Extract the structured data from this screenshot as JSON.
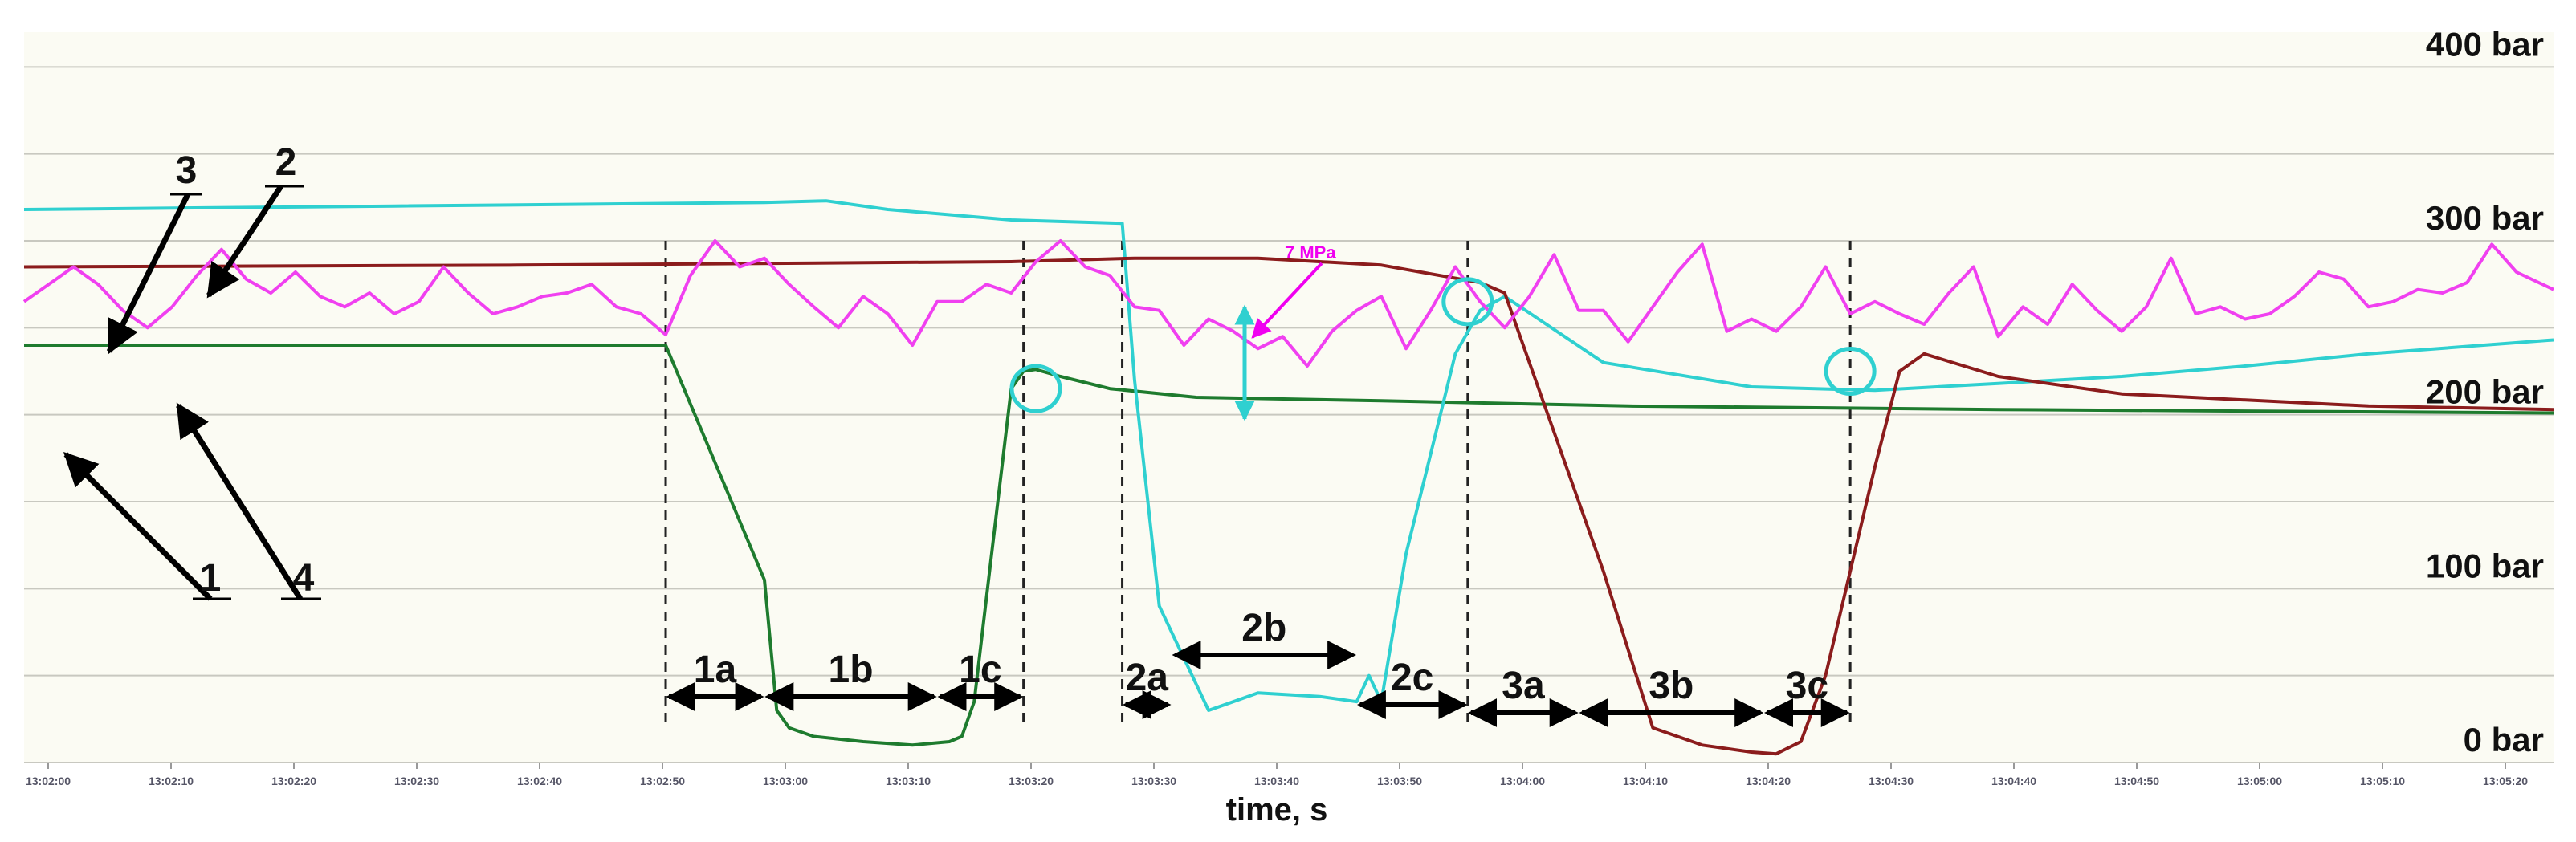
{
  "colors": {
    "background": "#fbfbf3",
    "grid": "#c8c8c0",
    "series_1": "#1e7b2e",
    "series_2": "#2fd0d0",
    "series_3": "#8b1c1c",
    "series_4": "#f040f0",
    "annotation": "#f000f0",
    "marker_circle": "#2fd0d0"
  },
  "chart_data": {
    "type": "line",
    "xlabel": "time, s",
    "x_ticks": [
      "13:02:00",
      "13:02:10",
      "13:02:20",
      "13:02:30",
      "13:02:40",
      "13:02:50",
      "13:03:00",
      "13:03:10",
      "13:03:20",
      "13:03:30",
      "13:03:40",
      "13:03:50",
      "13:04:00",
      "13:04:10",
      "13:04:20",
      "13:04:30",
      "13:04:40",
      "13:04:50",
      "13:05:00",
      "13:05:10",
      "13:05:20"
    ],
    "xlim": [
      0,
      205
    ],
    "ylim": [
      0,
      420
    ],
    "y_ticks": [
      {
        "value": 0,
        "label": "0 bar"
      },
      {
        "value": 100,
        "label": "100 bar"
      },
      {
        "value": 200,
        "label": "200 bar"
      },
      {
        "value": 300,
        "label": "300 bar"
      },
      {
        "value": 400,
        "label": "400 bar"
      }
    ],
    "grid": true,
    "series": [
      {
        "name": "1",
        "color": "#1e7b2e",
        "x": [
          0,
          52,
          60,
          61,
          62,
          64,
          68,
          72,
          75,
          76,
          77,
          78,
          80,
          81,
          82,
          84,
          88,
          95,
          110,
          130,
          160,
          205
        ],
        "y": [
          240,
          240,
          105,
          30,
          20,
          15,
          12,
          10,
          12,
          15,
          35,
          95,
          215,
          225,
          226,
          222,
          215,
          210,
          208,
          205,
          203,
          201
        ]
      },
      {
        "name": "2",
        "color": "#2fd0d0",
        "x": [
          0,
          30,
          60,
          65,
          70,
          80,
          89,
          90,
          92,
          96,
          100,
          105,
          108,
          109,
          110,
          112,
          116,
          118,
          120,
          128,
          140,
          150,
          160,
          170,
          180,
          190,
          205
        ],
        "y": [
          318,
          320,
          322,
          323,
          318,
          312,
          310,
          220,
          90,
          30,
          40,
          38,
          35,
          50,
          35,
          120,
          235,
          260,
          268,
          230,
          216,
          214,
          218,
          222,
          228,
          235,
          243
        ]
      },
      {
        "name": "3",
        "color": "#8b1c1c",
        "x": [
          0,
          40,
          80,
          90,
          100,
          110,
          118,
          120,
          122,
          128,
          132,
          136,
          140,
          142,
          144,
          146,
          150,
          152,
          154,
          160,
          170,
          190,
          205
        ],
        "y": [
          285,
          286,
          288,
          290,
          290,
          286,
          276,
          270,
          230,
          110,
          20,
          10,
          6,
          5,
          12,
          50,
          170,
          225,
          235,
          222,
          212,
          205,
          203
        ]
      },
      {
        "name": "4",
        "color": "#f040f0",
        "x": [
          0,
          2,
          4,
          6,
          8,
          10,
          12,
          14,
          16,
          18,
          20,
          22,
          24,
          26,
          28,
          30,
          32,
          34,
          36,
          38,
          40,
          42,
          44,
          46,
          48,
          50,
          52,
          54,
          56,
          58,
          60,
          62,
          64,
          66,
          68,
          70,
          72,
          74,
          76,
          78,
          80,
          82,
          84,
          86,
          88,
          90,
          92,
          94,
          96,
          98,
          100,
          102,
          104,
          106,
          108,
          110,
          112,
          114,
          116,
          118,
          120,
          122,
          124,
          126,
          128,
          130,
          132,
          134,
          136,
          138,
          140,
          142,
          144,
          146,
          148,
          150,
          152,
          154,
          156,
          158,
          160,
          162,
          164,
          166,
          168,
          170,
          172,
          174,
          176,
          178,
          180,
          182,
          184,
          186,
          188,
          190,
          192,
          194,
          196,
          198,
          200,
          202,
          205
        ],
        "y": [
          265,
          275,
          285,
          275,
          260,
          250,
          262,
          280,
          295,
          278,
          270,
          282,
          268,
          262,
          270,
          258,
          265,
          285,
          270,
          258,
          262,
          268,
          270,
          275,
          262,
          258,
          246,
          280,
          300,
          285,
          290,
          275,
          262,
          250,
          268,
          258,
          240,
          265,
          265,
          275,
          270,
          288,
          300,
          285,
          280,
          262,
          260,
          240,
          255,
          248,
          238,
          245,
          228,
          248,
          260,
          268,
          238,
          260,
          285,
          265,
          250,
          268,
          292,
          260,
          260,
          242,
          262,
          282,
          298,
          248,
          255,
          248,
          262,
          285,
          258,
          265,
          258,
          252,
          270,
          285,
          245,
          262,
          252,
          275,
          260,
          248,
          262,
          290,
          258,
          262,
          255,
          258,
          268,
          282,
          278,
          262,
          265,
          272,
          270,
          276,
          298,
          282,
          272
        ]
      }
    ],
    "annotations": {
      "series_callouts": [
        "1",
        "2",
        "3",
        "4"
      ],
      "segments": [
        {
          "label": "1a",
          "x0": 52,
          "x1": 60
        },
        {
          "label": "1b",
          "x0": 60,
          "x1": 74
        },
        {
          "label": "1c",
          "x0": 74,
          "x1": 81
        },
        {
          "label": "2a",
          "x0": 89,
          "x1": 93
        },
        {
          "label": "2b",
          "x0": 93,
          "x1": 108
        },
        {
          "label": "2c",
          "x0": 108,
          "x1": 117
        },
        {
          "label": "3a",
          "x0": 117,
          "x1": 126
        },
        {
          "label": "3b",
          "x0": 126,
          "x1": 141
        },
        {
          "label": "3c",
          "x0": 141,
          "x1": 148
        }
      ],
      "pressure_note": "7 MPa",
      "marker_points": [
        {
          "x": 82,
          "y": 215
        },
        {
          "x": 117,
          "y": 265
        },
        {
          "x": 148,
          "y": 225
        }
      ]
    }
  }
}
